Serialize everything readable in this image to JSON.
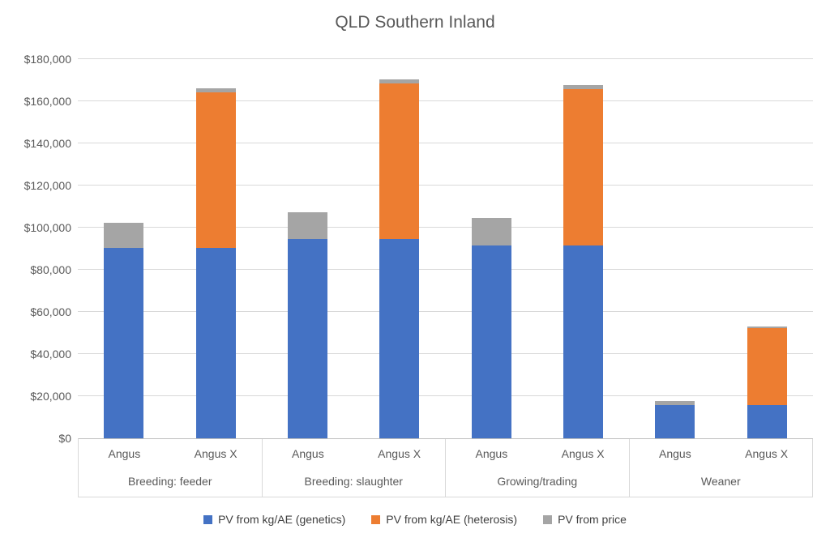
{
  "chart_data": {
    "type": "bar",
    "stacked": true,
    "title": "QLD Southern Inland",
    "xlabel": "",
    "ylabel": "",
    "ylim": [
      0,
      180000
    ],
    "ytick_step": 20000,
    "ytick_labels": [
      "$0",
      "$20,000",
      "$40,000",
      "$60,000",
      "$80,000",
      "$100,000",
      "$120,000",
      "$140,000",
      "$160,000",
      "$180,000"
    ],
    "grid": true,
    "legend_position": "bottom",
    "group_labels": [
      "Breeding: feeder",
      "Breeding: slaughter",
      "Growing/trading",
      "Weaner"
    ],
    "bar_labels": [
      "Angus",
      "Angus X"
    ],
    "categories": [
      {
        "group": "Breeding: feeder",
        "sub": "Angus"
      },
      {
        "group": "Breeding: feeder",
        "sub": "Angus X"
      },
      {
        "group": "Breeding: slaughter",
        "sub": "Angus"
      },
      {
        "group": "Breeding: slaughter",
        "sub": "Angus X"
      },
      {
        "group": "Growing/trading",
        "sub": "Angus"
      },
      {
        "group": "Growing/trading",
        "sub": "Angus X"
      },
      {
        "group": "Weaner",
        "sub": "Angus"
      },
      {
        "group": "Weaner",
        "sub": "Angus X"
      }
    ],
    "series": [
      {
        "key": "genetics",
        "name": "PV from kg/AE (genetics)",
        "color": "#4472C4",
        "values": [
          90400,
          90400,
          94600,
          94600,
          91500,
          91500,
          15800,
          15800
        ]
      },
      {
        "key": "heterosis",
        "name": "PV from kg/AE (heterosis)",
        "color": "#ED7D31",
        "values": [
          0,
          73800,
          0,
          73800,
          0,
          74200,
          0,
          36500
        ]
      },
      {
        "key": "price",
        "name": "PV from price",
        "color": "#A5A5A5",
        "values": [
          11900,
          1900,
          12700,
          1900,
          13100,
          1900,
          1900,
          800
        ]
      }
    ],
    "totals": [
      102300,
      166100,
      107300,
      170300,
      104600,
      167600,
      17700,
      53100
    ]
  }
}
